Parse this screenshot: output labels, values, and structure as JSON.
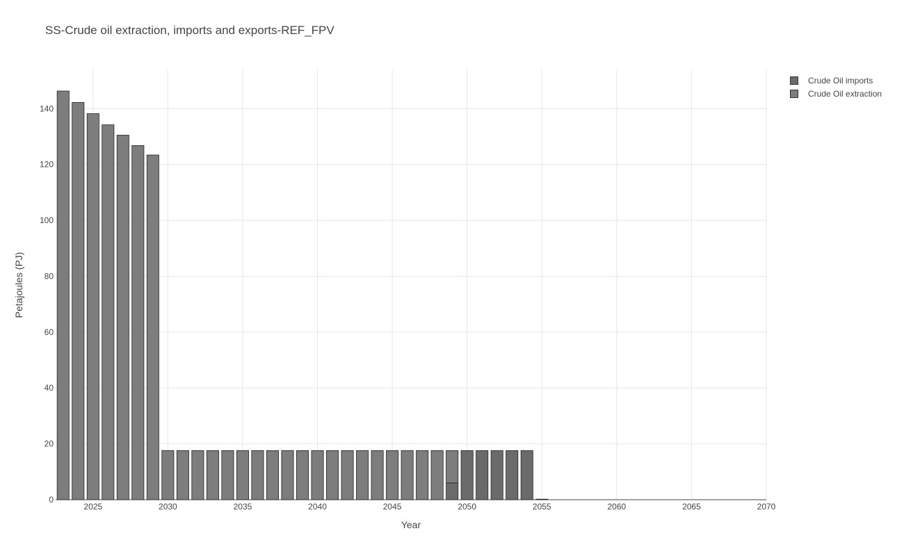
{
  "chart_data": {
    "type": "bar",
    "barmode": "stack",
    "title": "SS-Crude oil extraction, imports and exports-REF_FPV",
    "xlabel": "Year",
    "ylabel": "Petajoules (PJ)",
    "xlim": [
      2022.5,
      2070
    ],
    "ylim": [
      0,
      154
    ],
    "x_ticks": [
      2025,
      2030,
      2035,
      2040,
      2045,
      2050,
      2055,
      2060,
      2065,
      2070
    ],
    "y_ticks": [
      0,
      20,
      40,
      60,
      80,
      100,
      120,
      140
    ],
    "grid": true,
    "legend_position": "top-right",
    "x": [
      2023,
      2024,
      2025,
      2026,
      2027,
      2028,
      2029,
      2030,
      2031,
      2032,
      2033,
      2034,
      2035,
      2036,
      2037,
      2038,
      2039,
      2040,
      2041,
      2042,
      2043,
      2044,
      2045,
      2046,
      2047,
      2048,
      2049,
      2050,
      2051,
      2052,
      2053,
      2054,
      2055
    ],
    "series": [
      {
        "name": "Crude Oil imports",
        "color": "#6b6b6b",
        "values": [
          0,
          0,
          0,
          0,
          0,
          0,
          0,
          0,
          0,
          0,
          0,
          0,
          0,
          0,
          0,
          0,
          0,
          0,
          0,
          0,
          0,
          0,
          0,
          0,
          0,
          0,
          6.0,
          17.6,
          17.6,
          17.6,
          17.6,
          17.6,
          0.2
        ]
      },
      {
        "name": "Crude Oil extraction",
        "color": "#7d7d7d",
        "values": [
          146.3,
          142.2,
          138.2,
          134.2,
          130.5,
          126.8,
          123.4,
          17.6,
          17.6,
          17.6,
          17.6,
          17.6,
          17.6,
          17.6,
          17.6,
          17.6,
          17.6,
          17.6,
          17.6,
          17.6,
          17.6,
          17.6,
          17.6,
          17.6,
          17.6,
          17.6,
          11.6,
          0,
          0,
          0,
          0,
          0,
          0
        ]
      }
    ]
  }
}
